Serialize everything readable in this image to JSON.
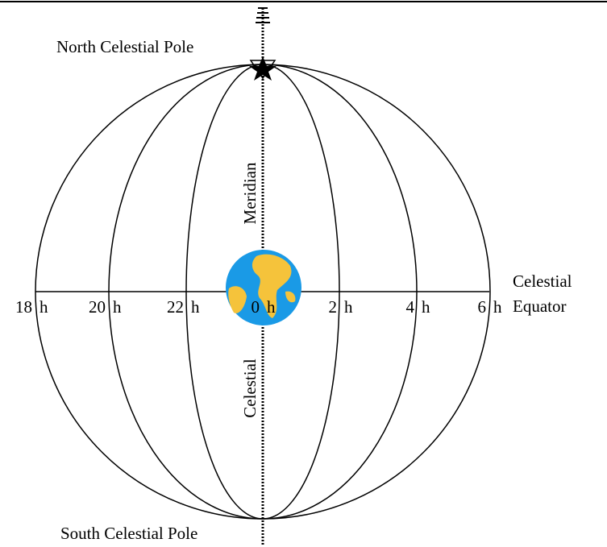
{
  "labels": {
    "north_pole": "North Celestial Pole",
    "south_pole": "South Celestial Pole",
    "equator": [
      "Celestial",
      "Equator"
    ],
    "meridian": [
      "Meridian",
      "Celestial"
    ]
  },
  "hours": [
    {
      "value": "18",
      "unit": "h"
    },
    {
      "value": "20",
      "unit": "h"
    },
    {
      "value": "22",
      "unit": "h"
    },
    {
      "value": "0",
      "unit": "h"
    },
    {
      "value": "2",
      "unit": "h"
    },
    {
      "value": "4",
      "unit": "h"
    },
    {
      "value": "6",
      "unit": "h"
    }
  ]
}
